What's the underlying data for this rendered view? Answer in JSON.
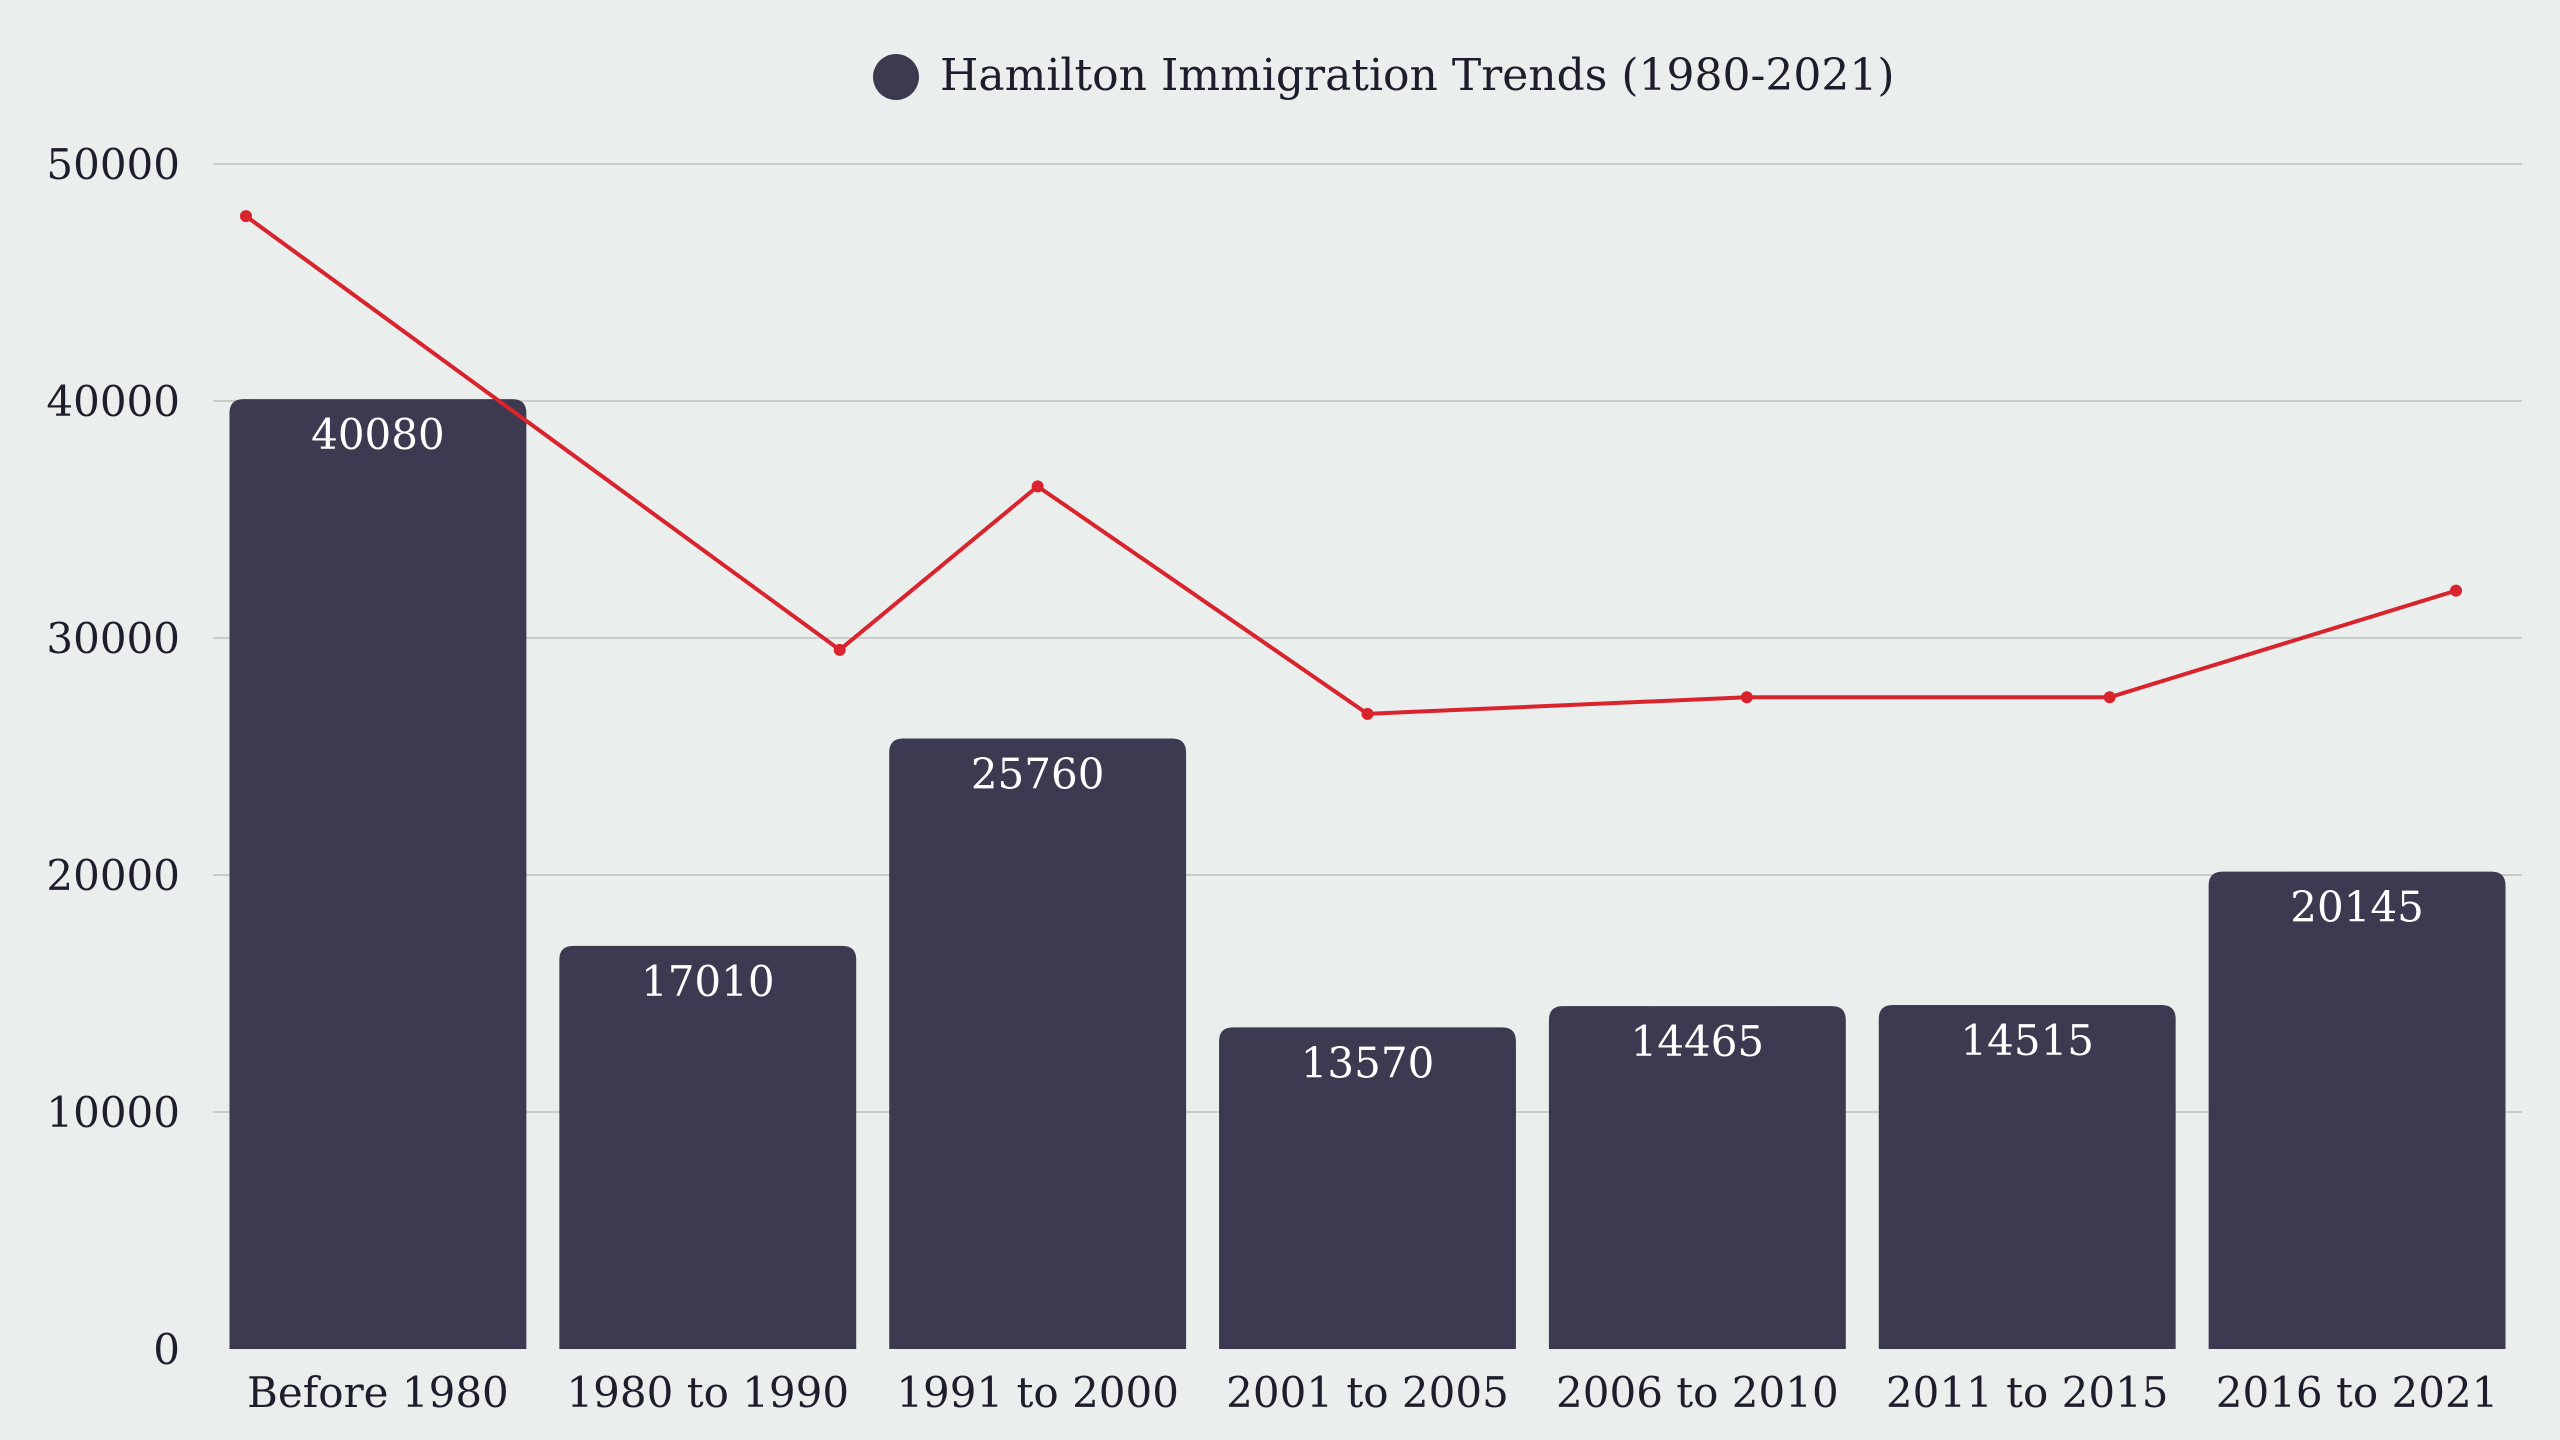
{
  "chart_data": {
    "type": "bar",
    "legend": {
      "label": "Hamilton Immigration Trends (1980-2021)",
      "color": "#3d3950",
      "position": "top-center"
    },
    "categories": [
      "Before 1980",
      "1980 to 1990",
      "1991 to 2000",
      "2001 to 2005",
      "2006 to 2010",
      "2011 to 2015",
      "2016 to 2021"
    ],
    "series": [
      {
        "name": "Hamilton Immigration Trends (1980-2021)",
        "type": "bar",
        "color": "#3d3950",
        "values": [
          40080,
          17010,
          25760,
          13570,
          14465,
          14515,
          20145
        ],
        "data_labels": [
          "40080",
          "17010",
          "25760",
          "13570",
          "14465",
          "14515",
          "20145"
        ]
      },
      {
        "type": "line",
        "color": "#d9232d",
        "values": [
          47800,
          29500,
          36400,
          26800,
          27500,
          27500,
          32000
        ]
      }
    ],
    "ylim": [
      0,
      50000
    ],
    "yticks": [
      "0",
      "10000",
      "20000",
      "30000",
      "40000",
      "50000"
    ],
    "grid": true,
    "xlabel": "",
    "ylabel": ""
  }
}
